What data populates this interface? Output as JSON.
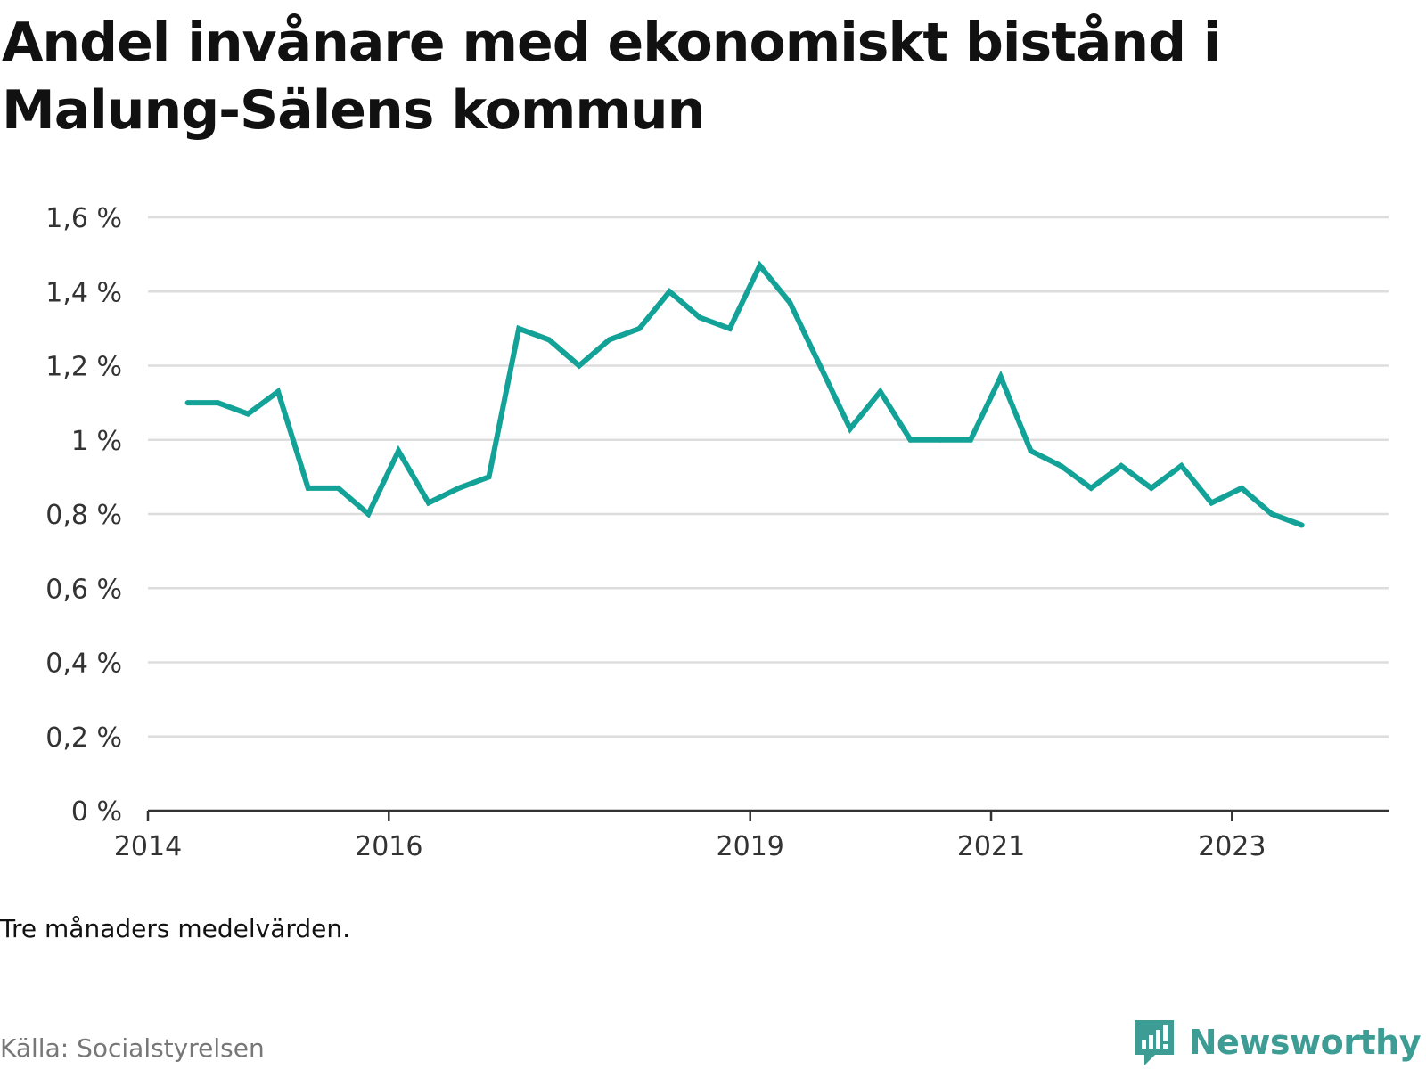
{
  "title": "Andel invånare med ekonomiskt bistånd i Malung-Sälens kommun",
  "note": "Tre månaders medelvärden.",
  "source": "Källa: Socialstyrelsen",
  "brand": {
    "name": "Newsworthy",
    "icon": "newsworthy-logo-icon",
    "color": "#3d9c94"
  },
  "colors": {
    "line": "#13a297",
    "grid": "#dddddd",
    "axis": "#333333"
  },
  "chart_data": {
    "type": "line",
    "title": "Andel invånare med ekonomiskt bistånd i Malung-Sälens kommun",
    "xlabel": "",
    "ylabel": "",
    "ylim": [
      0,
      1.6
    ],
    "xlim": [
      2014.0,
      2024.3
    ],
    "y_ticks": [
      {
        "value": 0,
        "label": "0 %"
      },
      {
        "value": 0.2,
        "label": "0,2 %"
      },
      {
        "value": 0.4,
        "label": "0,4 %"
      },
      {
        "value": 0.6,
        "label": "0,6 %"
      },
      {
        "value": 0.8,
        "label": "0,8 %"
      },
      {
        "value": 1.0,
        "label": "1 %"
      },
      {
        "value": 1.2,
        "label": "1,2 %"
      },
      {
        "value": 1.4,
        "label": "1,4 %"
      },
      {
        "value": 1.6,
        "label": "1,6 %"
      }
    ],
    "x_ticks": [
      {
        "value": 2014,
        "label": "2014"
      },
      {
        "value": 2016,
        "label": "2016"
      },
      {
        "value": 2019,
        "label": "2019"
      },
      {
        "value": 2021,
        "label": "2021"
      },
      {
        "value": 2023,
        "label": "2023"
      }
    ],
    "grid": true,
    "legend": "none",
    "series": [
      {
        "x": [
          2014.33,
          2014.58,
          2014.83,
          2015.08,
          2015.33,
          2015.58,
          2015.83,
          2016.08,
          2016.33,
          2016.58,
          2016.83,
          2017.08,
          2017.33,
          2017.58,
          2017.83,
          2018.08,
          2018.33,
          2018.58,
          2018.83,
          2019.08,
          2019.33,
          2019.58,
          2019.83,
          2020.08,
          2020.33,
          2020.58,
          2020.83,
          2021.08,
          2021.33,
          2021.58,
          2021.83,
          2022.08,
          2022.33,
          2022.58,
          2022.83,
          2023.08,
          2023.33,
          2023.58
        ],
        "values": [
          1.1,
          1.1,
          1.07,
          1.13,
          0.87,
          0.87,
          0.8,
          0.97,
          0.83,
          0.87,
          0.9,
          1.3,
          1.27,
          1.2,
          1.27,
          1.3,
          1.4,
          1.33,
          1.3,
          1.47,
          1.37,
          1.2,
          1.03,
          1.13,
          1.0,
          1.0,
          1.0,
          1.17,
          0.97,
          0.93,
          0.87,
          0.93,
          0.87,
          0.93,
          0.83,
          0.87,
          0.8,
          0.77
        ]
      }
    ]
  }
}
